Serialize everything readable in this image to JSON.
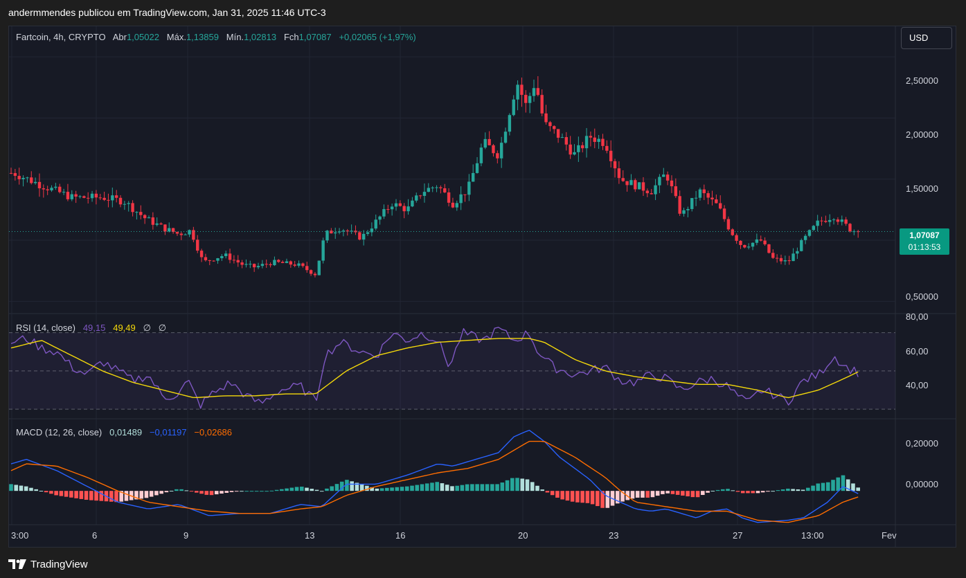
{
  "header": {
    "publish_line": "andermmendes publicou em TradingView.com, Jan 31, 2025 11:46 UTC-3"
  },
  "legend": {
    "symbol": "Fartcoin, 4h, CRYPTO",
    "open_label": "Abr",
    "open_value": "1,05022",
    "high_label": "Máx.",
    "high_value": "1,13859",
    "low_label": "Mín.",
    "low_value": "1,02813",
    "close_label": "Fch",
    "close_value": "1,07087",
    "change_value": "+0,02065 (+1,97%)"
  },
  "currency_button": "USD",
  "last_price": {
    "price": "1,07087",
    "countdown": "01:13:53"
  },
  "price_axis": [
    "2,50000",
    "2,00000",
    "1,50000",
    "0,50000"
  ],
  "rsi": {
    "title": "RSI (14, close)",
    "value": "49,15",
    "ma_value": "49,49",
    "extra1": "∅",
    "extra2": "∅",
    "axis": [
      "80,00",
      "60,00",
      "40,00"
    ]
  },
  "macd": {
    "title": "MACD (12, 26, close)",
    "hist_value": "0,01489",
    "macd_value": "−0,01197",
    "signal_value": "−0,02686",
    "axis": [
      "0,20000",
      "0,00000"
    ]
  },
  "time_axis": [
    "3:00",
    "6",
    "9",
    "13",
    "16",
    "20",
    "23",
    "27",
    "13:00",
    "Fev"
  ],
  "footer": {
    "brand": "TradingView"
  },
  "colors": {
    "up": "#26a69a",
    "down": "#f23645",
    "rsi_line": "#7e57c2",
    "rsi_ma": "#f5d90a",
    "macd_line": "#2962ff",
    "signal_line": "#ff6d00"
  },
  "chart_data": [
    {
      "type": "candlestick",
      "series_anchors_day_value": [
        [
          3.1,
          1.55
        ],
        [
          4.0,
          1.45
        ],
        [
          5.0,
          1.35
        ],
        [
          6.0,
          1.35
        ],
        [
          6.7,
          1.32
        ],
        [
          7.4,
          1.18
        ],
        [
          8.0,
          1.1
        ],
        [
          8.5,
          1.05
        ],
        [
          8.9,
          1.08
        ],
        [
          9.3,
          0.82
        ],
        [
          10.0,
          0.88
        ],
        [
          10.6,
          0.8
        ],
        [
          11.0,
          0.78
        ],
        [
          11.6,
          0.82
        ],
        [
          12.4,
          0.8
        ],
        [
          13.0,
          0.72
        ],
        [
          13.3,
          1.05
        ],
        [
          13.8,
          1.1
        ],
        [
          14.5,
          1.02
        ],
        [
          15.5,
          1.3
        ],
        [
          16.0,
          1.25
        ],
        [
          16.5,
          1.4
        ],
        [
          17.0,
          1.45
        ],
        [
          17.5,
          1.3
        ],
        [
          18.0,
          1.42
        ],
        [
          18.5,
          1.8
        ],
        [
          19.0,
          1.7
        ],
        [
          19.3,
          2.0
        ],
        [
          19.6,
          2.3
        ],
        [
          19.9,
          2.1
        ],
        [
          20.2,
          2.3
        ],
        [
          20.5,
          1.95
        ],
        [
          21.0,
          1.85
        ],
        [
          21.5,
          1.7
        ],
        [
          22.0,
          1.85
        ],
        [
          22.5,
          1.8
        ],
        [
          23.0,
          1.5
        ],
        [
          23.5,
          1.45
        ],
        [
          24.0,
          1.4
        ],
        [
          24.5,
          1.55
        ],
        [
          25.0,
          1.2
        ],
        [
          25.6,
          1.4
        ],
        [
          26.2,
          1.28
        ],
        [
          26.6,
          1.08
        ],
        [
          27.0,
          0.95
        ],
        [
          27.6,
          1.0
        ],
        [
          28.0,
          0.85
        ],
        [
          28.5,
          0.82
        ],
        [
          29.0,
          1.0
        ],
        [
          29.5,
          1.15
        ],
        [
          30.0,
          1.2
        ],
        [
          30.6,
          1.08
        ],
        [
          31.0,
          1.07087
        ]
      ],
      "ylim": [
        0.4,
        2.75
      ],
      "last_close": 1.07087
    },
    {
      "type": "line",
      "name": "RSI (14, close)",
      "series_anchors_day_value": [
        [
          3.0,
          65
        ],
        [
          3.5,
          67
        ],
        [
          4.0,
          62
        ],
        [
          4.5,
          60
        ],
        [
          5.0,
          52
        ],
        [
          5.5,
          48
        ],
        [
          6.0,
          55
        ],
        [
          6.5,
          50
        ],
        [
          7.0,
          45
        ],
        [
          7.5,
          48
        ],
        [
          8.0,
          36
        ],
        [
          8.5,
          38
        ],
        [
          8.8,
          45
        ],
        [
          9.2,
          32
        ],
        [
          9.6,
          38
        ],
        [
          10.2,
          44
        ],
        [
          10.8,
          36
        ],
        [
          11.2,
          33
        ],
        [
          11.8,
          40
        ],
        [
          12.5,
          42
        ],
        [
          13.0,
          34
        ],
        [
          13.3,
          58
        ],
        [
          13.8,
          65
        ],
        [
          14.5,
          60
        ],
        [
          15.0,
          58
        ],
        [
          15.5,
          70
        ],
        [
          16.0,
          66
        ],
        [
          16.5,
          70
        ],
        [
          17.0,
          66
        ],
        [
          17.4,
          52
        ],
        [
          17.8,
          70
        ],
        [
          18.5,
          66
        ],
        [
          19.0,
          72
        ],
        [
          19.5,
          66
        ],
        [
          20.0,
          70
        ],
        [
          20.3,
          60
        ],
        [
          20.8,
          52
        ],
        [
          21.5,
          48
        ],
        [
          22.0,
          50
        ],
        [
          22.5,
          52
        ],
        [
          23.0,
          45
        ],
        [
          23.5,
          44
        ],
        [
          24.0,
          48
        ],
        [
          24.5,
          46
        ],
        [
          25.0,
          40
        ],
        [
          25.5,
          44
        ],
        [
          26.0,
          46
        ],
        [
          26.5,
          42
        ],
        [
          26.9,
          36
        ],
        [
          27.2,
          33
        ],
        [
          27.6,
          40
        ],
        [
          28.0,
          38
        ],
        [
          28.5,
          34
        ],
        [
          29.0,
          45
        ],
        [
          29.5,
          48
        ],
        [
          30.0,
          58
        ],
        [
          30.4,
          52
        ],
        [
          30.8,
          49.15
        ]
      ],
      "ylim": [
        25,
        80
      ]
    },
    {
      "type": "line",
      "name": "RSI MA",
      "series_anchors_day_value": [
        [
          3.0,
          62
        ],
        [
          4.0,
          66
        ],
        [
          5.0,
          58
        ],
        [
          6.0,
          50
        ],
        [
          7.0,
          44
        ],
        [
          8.0,
          40
        ],
        [
          9.0,
          36
        ],
        [
          10.0,
          37
        ],
        [
          11.0,
          37
        ],
        [
          12.0,
          38
        ],
        [
          13.0,
          38
        ],
        [
          14.0,
          50
        ],
        [
          15.0,
          58
        ],
        [
          16.0,
          62
        ],
        [
          17.0,
          65
        ],
        [
          18.0,
          66
        ],
        [
          19.0,
          67
        ],
        [
          20.0,
          67
        ],
        [
          20.5,
          65
        ],
        [
          21.5,
          56
        ],
        [
          22.5,
          50
        ],
        [
          23.5,
          47
        ],
        [
          24.5,
          45
        ],
        [
          25.5,
          43
        ],
        [
          26.5,
          43
        ],
        [
          27.5,
          40
        ],
        [
          28.5,
          36
        ],
        [
          29.5,
          40
        ],
        [
          30.2,
          45
        ],
        [
          30.8,
          49.49
        ]
      ],
      "ylim": [
        25,
        80
      ]
    },
    {
      "type": "line",
      "name": "MACD (12, 26, close)",
      "series_anchors_day_value": [
        [
          3.0,
          0.12
        ],
        [
          3.5,
          0.14
        ],
        [
          4.5,
          0.09
        ],
        [
          5.5,
          0.02
        ],
        [
          6.5,
          -0.05
        ],
        [
          7.5,
          -0.08
        ],
        [
          8.5,
          -0.06
        ],
        [
          9.5,
          -0.11
        ],
        [
          10.5,
          -0.1
        ],
        [
          11.5,
          -0.1
        ],
        [
          12.5,
          -0.06
        ],
        [
          13.2,
          -0.07
        ],
        [
          14.0,
          0.03
        ],
        [
          15.0,
          0.03
        ],
        [
          16.0,
          0.07
        ],
        [
          17.0,
          0.12
        ],
        [
          17.5,
          0.11
        ],
        [
          18.0,
          0.13
        ],
        [
          18.5,
          0.15
        ],
        [
          19.0,
          0.17
        ],
        [
          19.5,
          0.24
        ],
        [
          20.0,
          0.27
        ],
        [
          20.5,
          0.22
        ],
        [
          21.0,
          0.15
        ],
        [
          22.0,
          0.05
        ],
        [
          22.5,
          -0.02
        ],
        [
          23.0,
          -0.05
        ],
        [
          23.5,
          -0.08
        ],
        [
          24.0,
          -0.09
        ],
        [
          24.5,
          -0.08
        ],
        [
          25.5,
          -0.12
        ],
        [
          26.0,
          -0.09
        ],
        [
          26.5,
          -0.08
        ],
        [
          27.0,
          -0.12
        ],
        [
          27.5,
          -0.14
        ],
        [
          28.5,
          -0.13
        ],
        [
          29.0,
          -0.12
        ],
        [
          29.8,
          -0.05
        ],
        [
          30.3,
          0.02
        ],
        [
          30.8,
          -0.01197
        ]
      ],
      "ylim": [
        -0.15,
        0.32
      ]
    },
    {
      "type": "line",
      "name": "Signal",
      "series_anchors_day_value": [
        [
          3.0,
          0.09
        ],
        [
          3.5,
          0.12
        ],
        [
          4.5,
          0.11
        ],
        [
          5.5,
          0.06
        ],
        [
          6.5,
          0.0
        ],
        [
          7.5,
          -0.05
        ],
        [
          8.5,
          -0.07
        ],
        [
          9.5,
          -0.09
        ],
        [
          10.5,
          -0.1
        ],
        [
          11.5,
          -0.1
        ],
        [
          12.5,
          -0.08
        ],
        [
          13.2,
          -0.07
        ],
        [
          14.0,
          -0.02
        ],
        [
          15.0,
          0.02
        ],
        [
          16.0,
          0.05
        ],
        [
          17.0,
          0.08
        ],
        [
          18.0,
          0.1
        ],
        [
          19.0,
          0.14
        ],
        [
          20.0,
          0.22
        ],
        [
          20.5,
          0.22
        ],
        [
          21.5,
          0.15
        ],
        [
          22.5,
          0.06
        ],
        [
          23.0,
          0.0
        ],
        [
          23.5,
          -0.05
        ],
        [
          24.5,
          -0.07
        ],
        [
          25.5,
          -0.09
        ],
        [
          26.5,
          -0.09
        ],
        [
          27.5,
          -0.13
        ],
        [
          28.5,
          -0.14
        ],
        [
          29.5,
          -0.11
        ],
        [
          30.3,
          -0.05
        ],
        [
          30.8,
          -0.02686
        ]
      ],
      "ylim": [
        -0.15,
        0.32
      ]
    }
  ]
}
